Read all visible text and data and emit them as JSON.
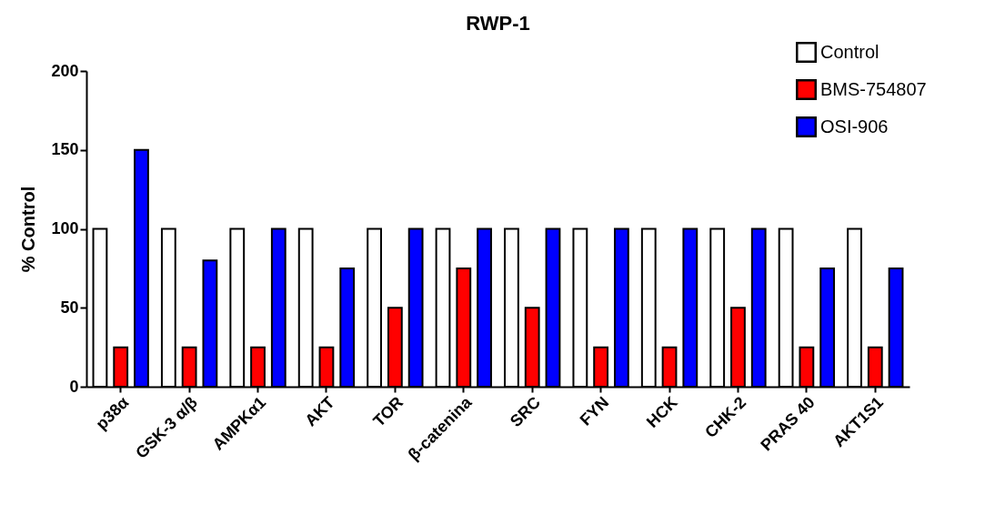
{
  "chart_data": {
    "type": "bar",
    "title": "RWP-1",
    "ylabel": "% Control",
    "categories": [
      "p38α",
      "GSK-3 α/β",
      "AMPKα1",
      "AKT",
      "TOR",
      "β-catenina",
      "SRC",
      "FYN",
      "HCK",
      "CHK-2",
      "PRAS 40",
      "AKT1S1"
    ],
    "series": [
      {
        "name": "Control",
        "color": "#ffffff",
        "values": [
          100,
          100,
          100,
          100,
          100,
          100,
          100,
          100,
          100,
          100,
          100,
          100
        ]
      },
      {
        "name": "BMS-754807",
        "color": "#ff0000",
        "values": [
          25,
          25,
          25,
          25,
          50,
          75,
          50,
          25,
          25,
          50,
          25,
          25
        ]
      },
      {
        "name": "OSI-906",
        "color": "#0000ff",
        "values": [
          150,
          80,
          100,
          75,
          100,
          100,
          100,
          100,
          100,
          100,
          75,
          75
        ]
      }
    ],
    "ylim": [
      0,
      200
    ],
    "yticks": [
      0,
      50,
      100,
      150,
      200
    ],
    "grid": false,
    "legend": "top right"
  }
}
